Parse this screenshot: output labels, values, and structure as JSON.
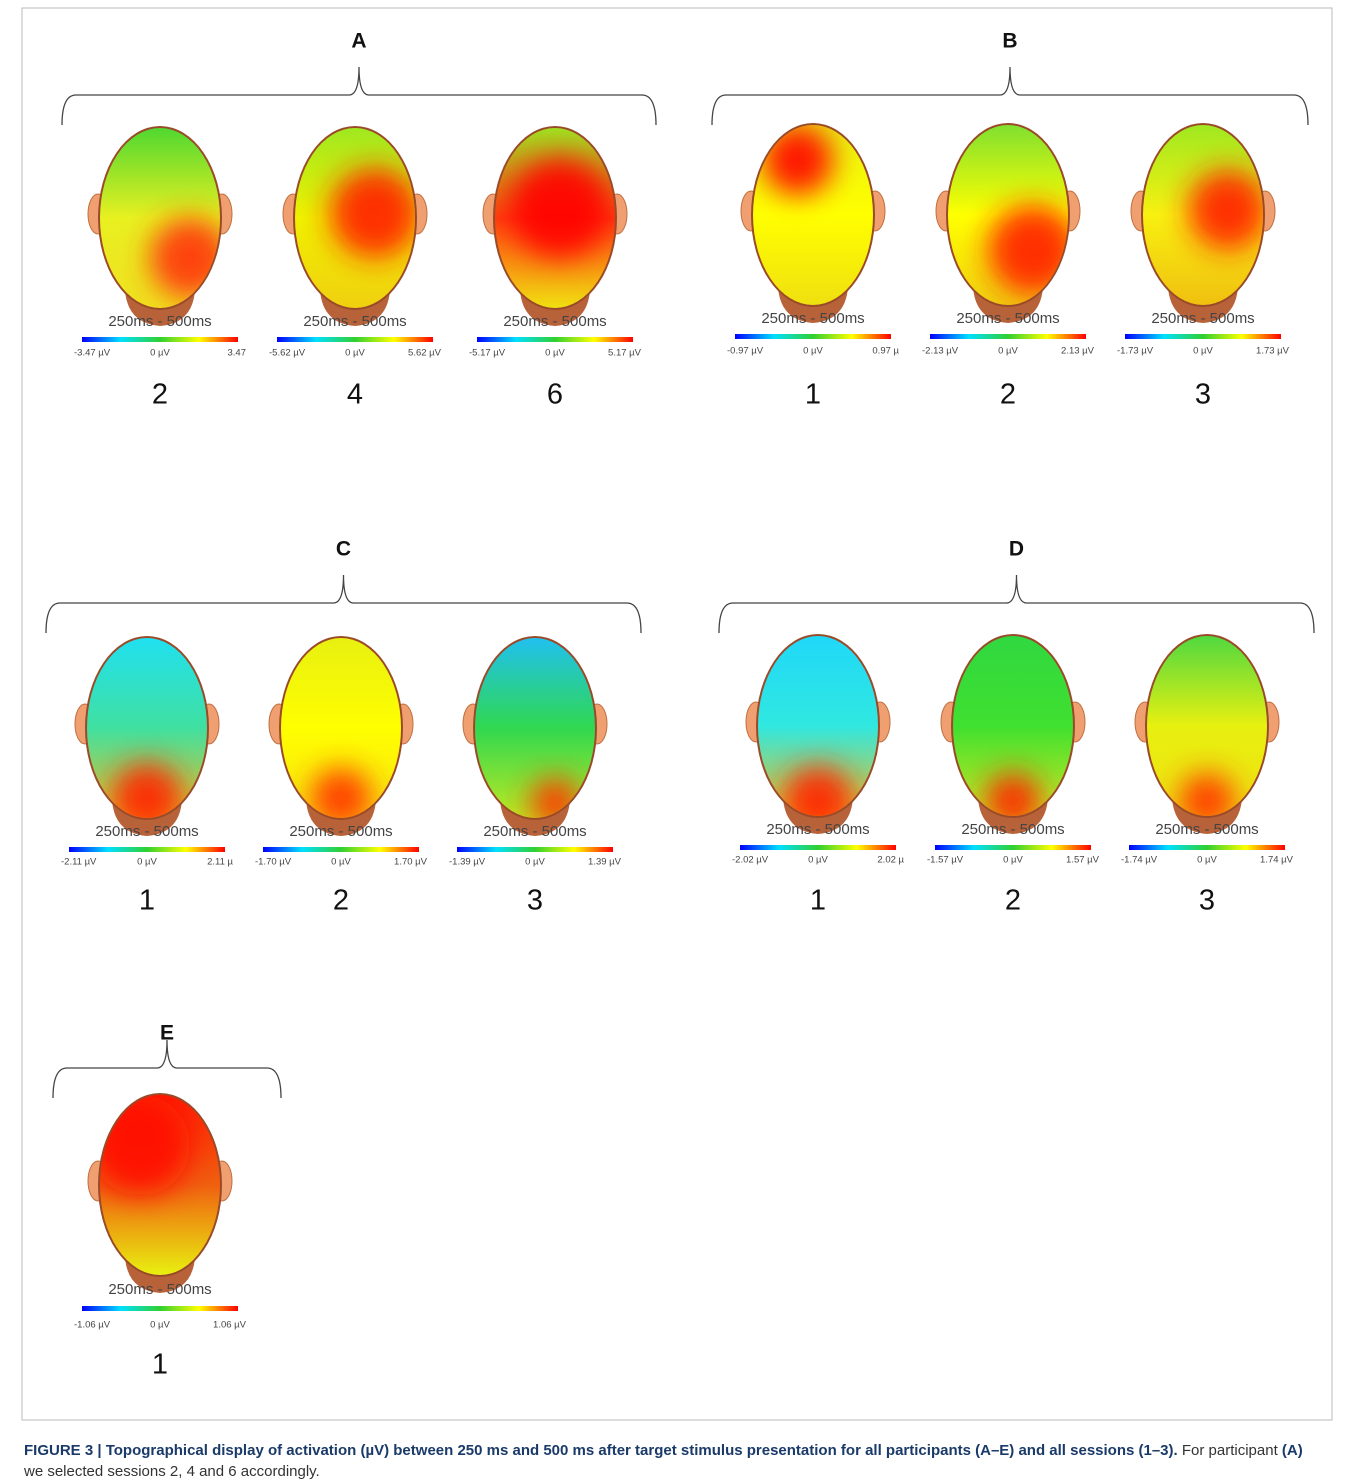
{
  "groups": [
    {
      "label": "A",
      "maps": [
        {
          "time": "250ms - 500ms",
          "scale": [
            "-3.47 µV",
            "0 µV",
            "3.47"
          ],
          "session": "2"
        },
        {
          "time": "250ms - 500ms",
          "scale": [
            "-5.62 µV",
            "0 µV",
            "5.62 µV"
          ],
          "session": "4"
        },
        {
          "time": "250ms - 500ms",
          "scale": [
            "-5.17 µV",
            "0 µV",
            "5.17 µV"
          ],
          "session": "6"
        }
      ]
    },
    {
      "label": "B",
      "maps": [
        {
          "time": "250ms - 500ms",
          "scale": [
            "-0.97 µV",
            "0 µV",
            "0.97 µ"
          ],
          "session": "1"
        },
        {
          "time": "250ms - 500ms",
          "scale": [
            "-2.13 µV",
            "0 µV",
            "2.13 µV"
          ],
          "session": "2"
        },
        {
          "time": "250ms - 500ms",
          "scale": [
            "-1.73 µV",
            "0 µV",
            "1.73 µV"
          ],
          "session": "3"
        }
      ]
    },
    {
      "label": "C",
      "maps": [
        {
          "time": "250ms - 500ms",
          "scale": [
            "-2.11 µV",
            "0 µV",
            "2.11 µ"
          ],
          "session": "1"
        },
        {
          "time": "250ms - 500ms",
          "scale": [
            "-1.70 µV",
            "0 µV",
            "1.70 µV"
          ],
          "session": "2"
        },
        {
          "time": "250ms - 500ms",
          "scale": [
            "-1.39 µV",
            "0 µV",
            "1.39 µV"
          ],
          "session": "3"
        }
      ]
    },
    {
      "label": "D",
      "maps": [
        {
          "time": "250ms - 500ms",
          "scale": [
            "-2.02 µV",
            "0 µV",
            "2.02 µ"
          ],
          "session": "1"
        },
        {
          "time": "250ms - 500ms",
          "scale": [
            "-1.57 µV",
            "0 µV",
            "1.57 µV"
          ],
          "session": "2"
        },
        {
          "time": "250ms - 500ms",
          "scale": [
            "-1.74 µV",
            "0 µV",
            "1.74 µV"
          ],
          "session": "3"
        }
      ]
    },
    {
      "label": "E",
      "maps": [
        {
          "time": "250ms - 500ms",
          "scale": [
            "-1.06 µV",
            "0 µV",
            "1.06 µV"
          ],
          "session": "1"
        }
      ]
    }
  ],
  "caption": {
    "bold": "FIGURE 3 | Topographical display of activation (µV) between 250 ms and 500 ms after target stimulus presentation for all participants (A–E) and all sessions (1–3).",
    "text1": "For participant",
    "bold2": "(A)",
    "text2": "we selected sessions 2, 4 and 6 accordingly."
  }
}
